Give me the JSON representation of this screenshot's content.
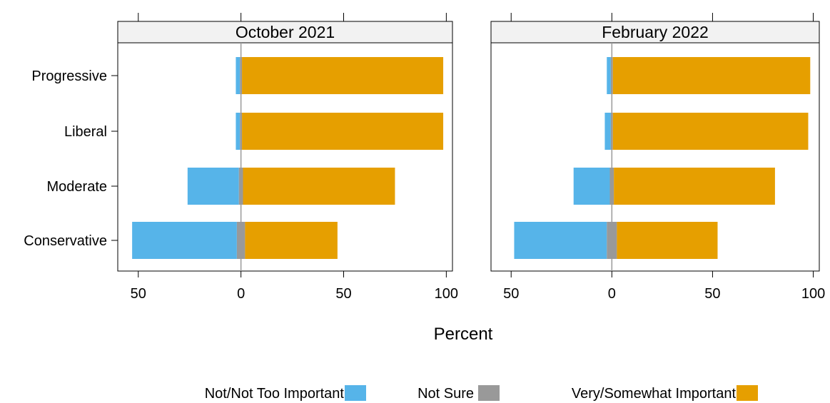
{
  "chart_data": {
    "type": "bar",
    "orientation": "horizontal-diverging",
    "xlabel": "Percent",
    "categories": [
      "Progressive",
      "Liberal",
      "Moderate",
      "Conservative"
    ],
    "x_tick_labels": [
      "50",
      "0",
      "50",
      "100"
    ],
    "x_ticks": [
      -50,
      0,
      50,
      100
    ],
    "xlim": [
      -60,
      103
    ],
    "legend_position": "bottom",
    "series_info": [
      {
        "name": "Not/Not Too Important",
        "color": "#56B4E9"
      },
      {
        "name": "Not Sure",
        "color": "#999999"
      },
      {
        "name": "Very/Somewhat Important",
        "color": "#E69F00"
      }
    ],
    "panels": [
      {
        "title": "October 2021",
        "series": [
          {
            "name": "Not/Not Too Important",
            "values": [
              2,
              2,
              25,
              51
            ]
          },
          {
            "name": "Not Sure",
            "values": [
              1,
              1,
              2,
              4
            ]
          },
          {
            "name": "Very/Somewhat Important",
            "values": [
              98,
              98,
              74,
              45
            ]
          }
        ]
      },
      {
        "title": "February 2022",
        "series": [
          {
            "name": "Not/Not Too Important",
            "values": [
              2,
              3,
              18,
              46
            ]
          },
          {
            "name": "Not Sure",
            "values": [
              1,
              1,
              2,
              5
            ]
          },
          {
            "name": "Very/Somewhat Important",
            "values": [
              98,
              97,
              80,
              50
            ]
          }
        ]
      }
    ]
  }
}
